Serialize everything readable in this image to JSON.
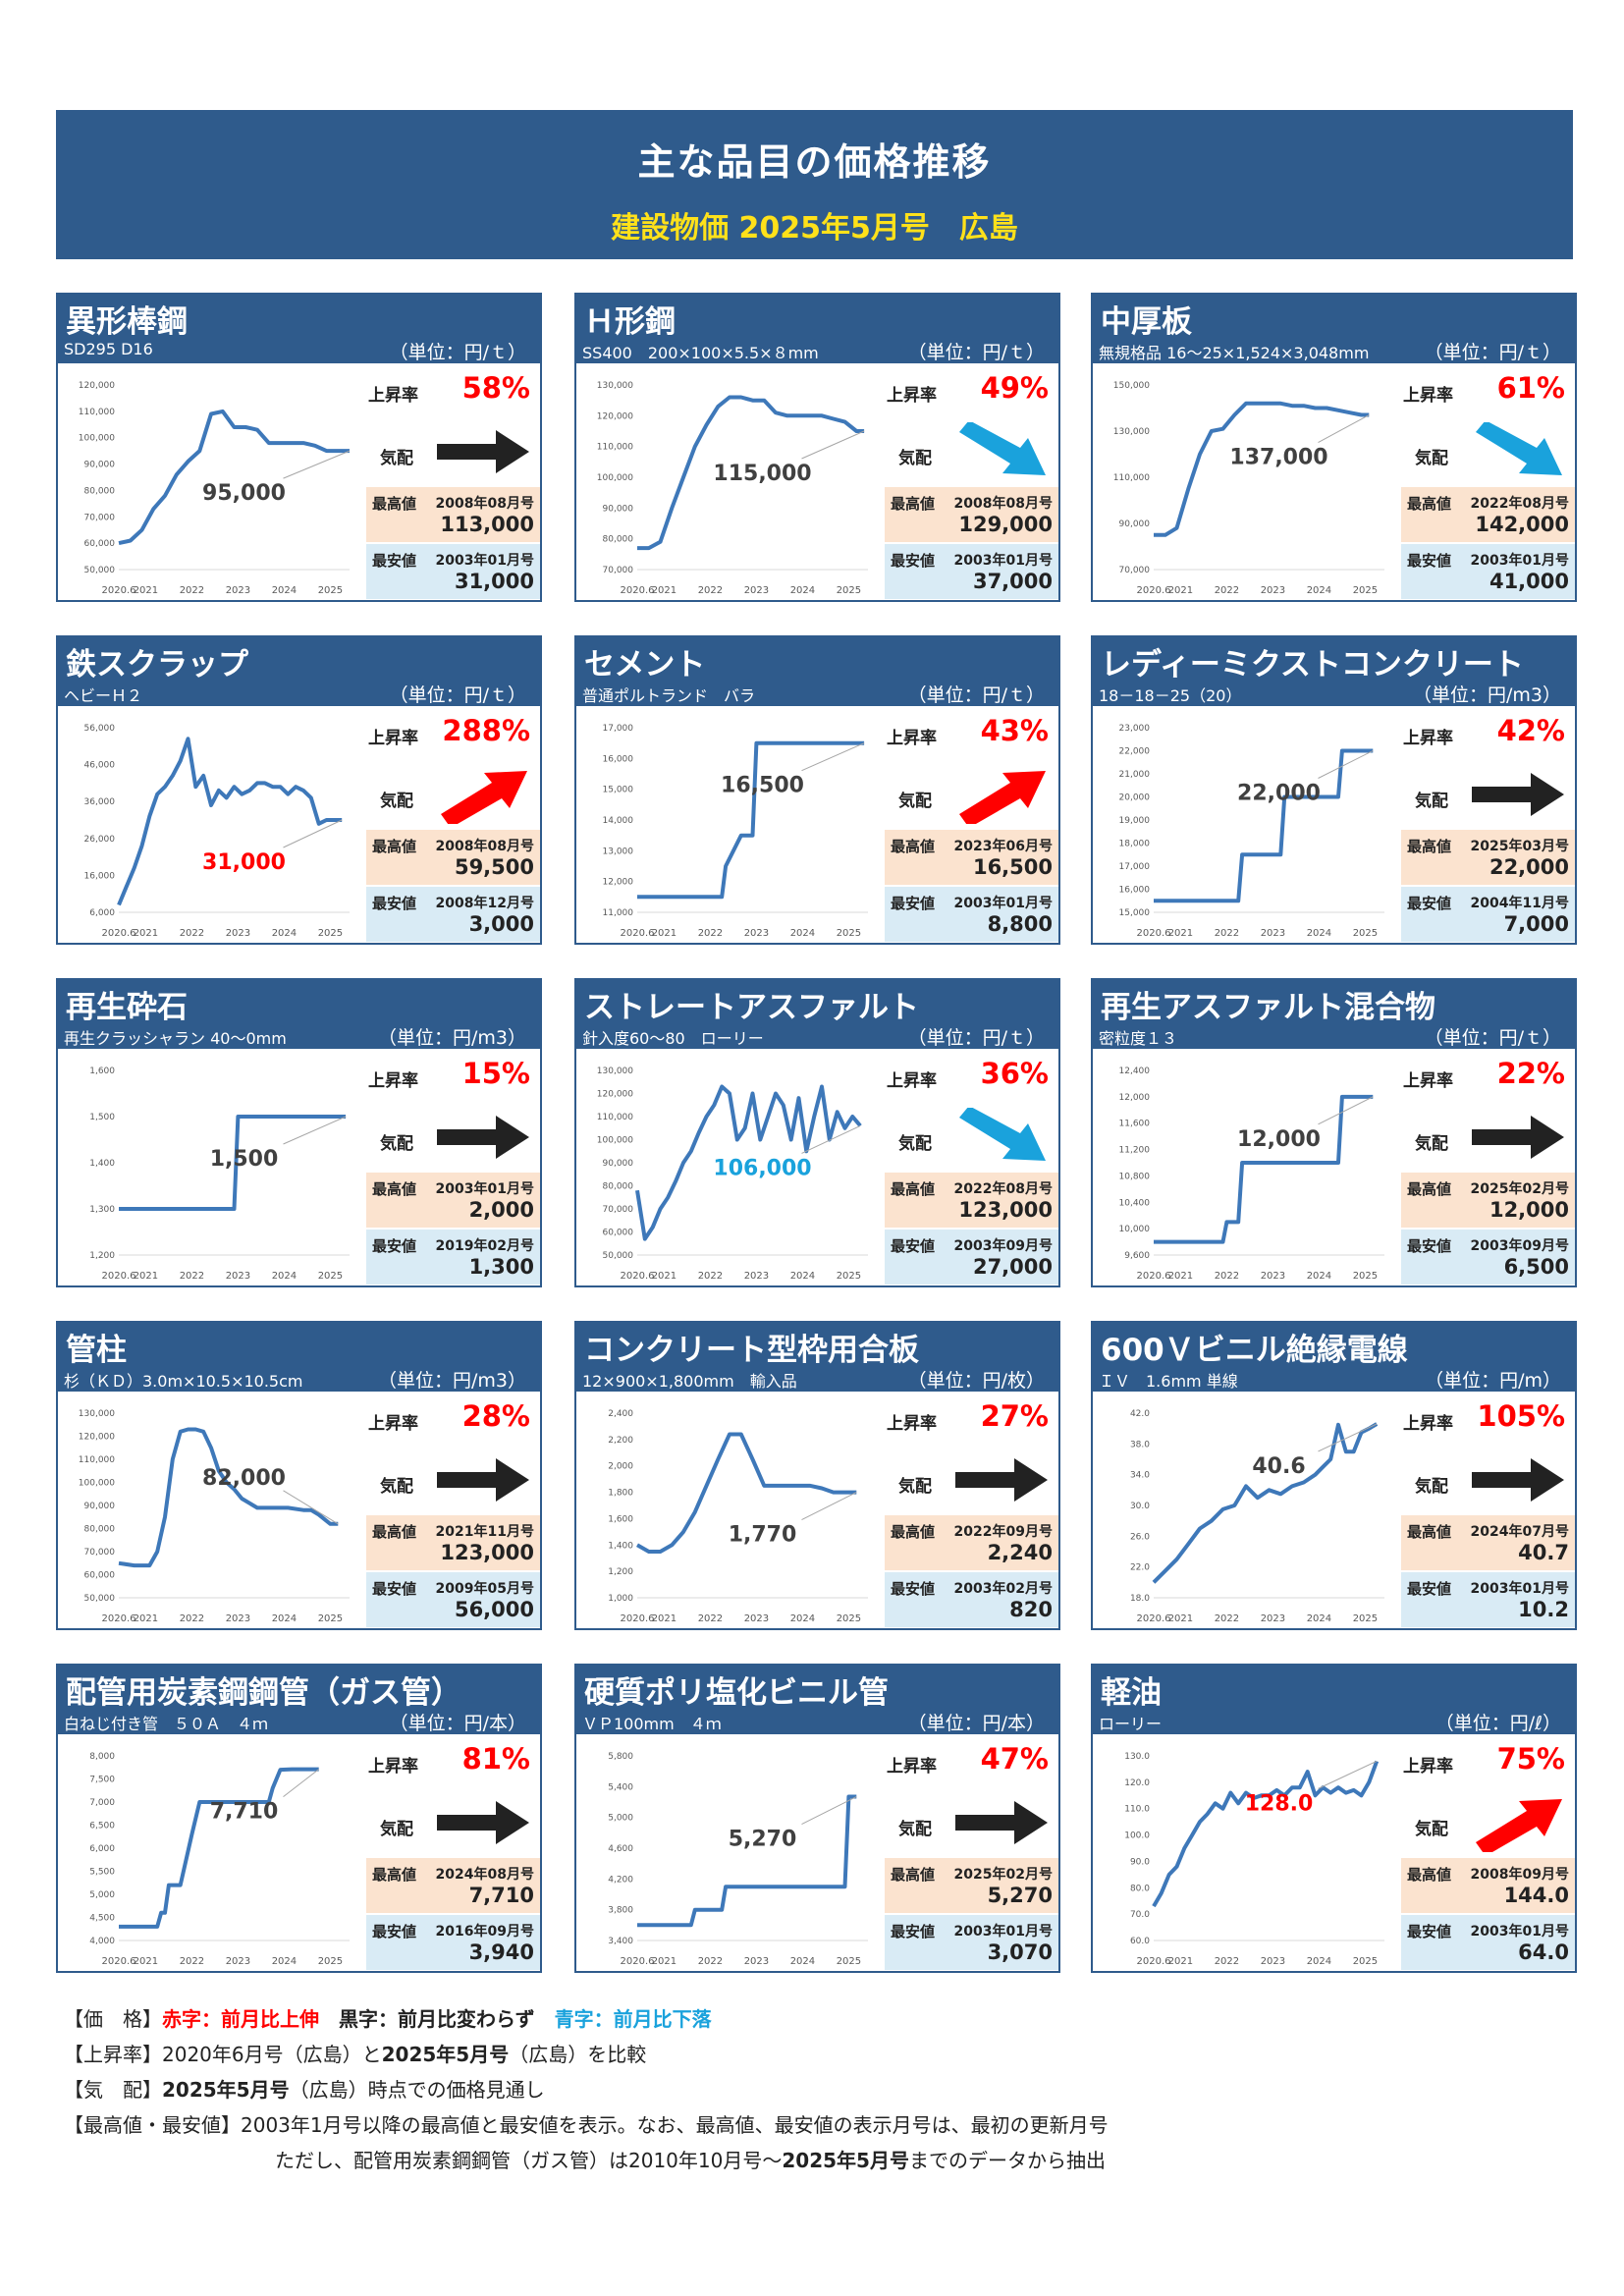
{
  "header": {
    "title": "主な品目の価格推移",
    "subtitle": "建設物価 2025年5月号　広島"
  },
  "common": {
    "rate_label": "上昇率",
    "trend_label": "気配",
    "max_label": "最高値",
    "min_label": "最安値",
    "xticks": [
      "2020.6",
      "2021",
      "2022",
      "2023",
      "2024",
      "2025"
    ]
  },
  "colors": {
    "header_bg": "#2f5b8c",
    "header_sub": "#ffe11a",
    "line": "#3e78b9",
    "up": "#ff0000",
    "flat": "#222222",
    "down": "#1aa2dc",
    "max_bg": "#fbe3cf",
    "min_bg": "#d9ebf5"
  },
  "chart_data": [
    {
      "type": "line",
      "title": "異形棒鋼",
      "spec": "SD295 D16",
      "unit": "（単位：円/ｔ）",
      "yticks": [
        "50,000",
        "60,000",
        "70,000",
        "80,000",
        "90,000",
        "100,000",
        "110,000",
        "120,000"
      ],
      "ylim": [
        50000,
        120000
      ],
      "x": [
        0,
        3,
        6,
        9,
        12,
        15,
        18,
        21,
        24,
        27,
        30,
        33,
        36,
        39,
        42,
        45,
        48,
        51,
        54,
        57,
        60
      ],
      "values": [
        60000,
        61000,
        65000,
        73000,
        78000,
        86000,
        91000,
        95000,
        109000,
        110000,
        104000,
        104000,
        103000,
        98000,
        98000,
        98000,
        98000,
        97000,
        95000,
        95000,
        95000
      ],
      "current": "95,000",
      "current_color": "blk",
      "rate": "58%",
      "rate_color": "red",
      "trend": "flat",
      "max_date": "2008年08月号",
      "max": "113,000",
      "min_date": "2003年01月号",
      "min": "31,000"
    },
    {
      "type": "line",
      "title": "Ｈ形鋼",
      "spec": "SS400　200×100×5.5×８mm",
      "unit": "（単位：円/ｔ）",
      "yticks": [
        "70,000",
        "80,000",
        "90,000",
        "100,000",
        "110,000",
        "120,000",
        "130,000"
      ],
      "ylim": [
        70000,
        130000
      ],
      "x": [
        0,
        3,
        6,
        9,
        12,
        15,
        18,
        21,
        24,
        27,
        30,
        33,
        36,
        39,
        42,
        45,
        48,
        51,
        54,
        57,
        59
      ],
      "values": [
        77000,
        77000,
        79000,
        90000,
        100000,
        110000,
        117000,
        123000,
        126000,
        126000,
        125000,
        125000,
        121000,
        120000,
        120000,
        120000,
        120000,
        119000,
        118000,
        115000,
        115000
      ],
      "current": "115,000",
      "current_color": "blk",
      "rate": "49%",
      "rate_color": "red",
      "trend": "down",
      "max_date": "2008年08月号",
      "max": "129,000",
      "min_date": "2003年01月号",
      "min": "37,000"
    },
    {
      "type": "line",
      "title": "中厚板",
      "spec": "無規格品 16〜25×1,524×3,048mm",
      "unit": "（単位：円/ｔ）",
      "yticks": [
        "70,000",
        "90,000",
        "110,000",
        "130,000",
        "150,000"
      ],
      "ylim": [
        70000,
        150000
      ],
      "x": [
        0,
        3,
        6,
        9,
        12,
        15,
        18,
        21,
        24,
        27,
        30,
        33,
        36,
        39,
        42,
        45,
        48,
        51,
        54,
        56
      ],
      "values": [
        85000,
        85000,
        88000,
        105000,
        120000,
        130000,
        131000,
        137000,
        142000,
        142000,
        142000,
        142000,
        141000,
        141000,
        140000,
        140000,
        139000,
        138000,
        137000,
        137000
      ],
      "current": "137,000",
      "current_color": "blk",
      "rate": "61%",
      "rate_color": "red",
      "trend": "down",
      "max_date": "2022年08月号",
      "max": "142,000",
      "min_date": "2003年01月号",
      "min": "41,000"
    },
    {
      "type": "line",
      "title": "鉄スクラップ",
      "spec": "ヘビーＨ２",
      "unit": "（単位：円/ｔ）",
      "yticks": [
        "6,000",
        "16,000",
        "26,000",
        "36,000",
        "46,000",
        "56,000"
      ],
      "ylim": [
        6000,
        56000
      ],
      "x": [
        0,
        2,
        4,
        6,
        8,
        10,
        12,
        14,
        16,
        18,
        20,
        22,
        24,
        26,
        28,
        30,
        32,
        34,
        36,
        38,
        40,
        42,
        44,
        46,
        48,
        50,
        52,
        54,
        56,
        58
      ],
      "values": [
        8000,
        13000,
        18000,
        24000,
        32000,
        38000,
        40000,
        43000,
        47000,
        53000,
        40000,
        43000,
        35000,
        39000,
        37000,
        40000,
        38000,
        39000,
        41000,
        41000,
        40000,
        40000,
        38000,
        40000,
        39000,
        37000,
        30000,
        31000,
        31000,
        31000
      ],
      "current": "31,000",
      "current_color": "red",
      "rate": "288%",
      "rate_color": "red",
      "trend": "up",
      "max_date": "2008年08月号",
      "max": "59,500",
      "min_date": "2008年12月号",
      "min": "3,000"
    },
    {
      "type": "line",
      "title": "セメント",
      "spec": "普通ポルトランド　バラ",
      "unit": "（単位：円/ｔ）",
      "yticks": [
        "11,000",
        "12,000",
        "13,000",
        "14,000",
        "15,000",
        "16,000",
        "17,000"
      ],
      "ylim": [
        11000,
        17000
      ],
      "x": [
        0,
        11,
        22,
        23,
        27,
        30,
        31,
        36,
        48,
        59
      ],
      "values": [
        11500,
        11500,
        11500,
        12500,
        13500,
        13500,
        16500,
        16500,
        16500,
        16500
      ],
      "current": "16,500",
      "current_color": "blk",
      "rate": "43%",
      "rate_color": "red",
      "trend": "up",
      "max_date": "2023年06月号",
      "max": "16,500",
      "min_date": "2003年01月号",
      "min": "8,800"
    },
    {
      "type": "line",
      "title": "レディーミクストコンクリート",
      "spec": "18－18－25（20）",
      "unit": "（単位：円/m3）",
      "yticks": [
        "15,000",
        "16,000",
        "17,000",
        "18,000",
        "19,000",
        "20,000",
        "21,000",
        "22,000",
        "23,000"
      ],
      "ylim": [
        15000,
        23000
      ],
      "x": [
        0,
        10,
        22,
        23,
        33,
        34,
        48,
        49,
        57
      ],
      "values": [
        15500,
        15500,
        15500,
        17500,
        17500,
        20000,
        20000,
        22000,
        22000
      ],
      "current": "22,000",
      "current_color": "blk",
      "rate": "42%",
      "rate_color": "red",
      "trend": "flat",
      "max_date": "2025年03月号",
      "max": "22,000",
      "min_date": "2004年11月号",
      "min": "7,000"
    },
    {
      "type": "line",
      "title": "再生砕石",
      "spec": "再生クラッシャラン 40～0mm",
      "unit": "（単位：円/m3）",
      "yticks": [
        "1,200",
        "1,300",
        "1,400",
        "1,500",
        "1,600"
      ],
      "ylim": [
        1200,
        1600
      ],
      "x": [
        0,
        15,
        30,
        31,
        45,
        59
      ],
      "values": [
        1300,
        1300,
        1300,
        1500,
        1500,
        1500
      ],
      "current": "1,500",
      "current_color": "blk",
      "rate": "15%",
      "rate_color": "red",
      "trend": "flat",
      "max_date": "2003年01月号",
      "max": "2,000",
      "min_date": "2019年02月号",
      "min": "1,300"
    },
    {
      "type": "line",
      "title": "ストレートアスファルト",
      "spec": "針入度60〜80　ローリー",
      "unit": "（単位：円/ｔ）",
      "yticks": [
        "50,000",
        "60,000",
        "70,000",
        "80,000",
        "90,000",
        "100,000",
        "110,000",
        "120,000",
        "130,000"
      ],
      "ylim": [
        50000,
        130000
      ],
      "x": [
        0,
        2,
        4,
        6,
        8,
        10,
        12,
        14,
        16,
        18,
        20,
        22,
        24,
        26,
        28,
        30,
        32,
        34,
        36,
        38,
        40,
        42,
        44,
        46,
        48,
        50,
        52,
        54,
        56,
        58
      ],
      "values": [
        78000,
        57000,
        62000,
        70000,
        75000,
        82000,
        90000,
        95000,
        103000,
        110000,
        115000,
        123000,
        120000,
        100000,
        105000,
        120000,
        100000,
        110000,
        120000,
        115000,
        100000,
        118000,
        95000,
        110000,
        123000,
        100000,
        112000,
        105000,
        110000,
        106000
      ],
      "current": "106,000",
      "current_color": "blu",
      "rate": "36%",
      "rate_color": "red",
      "trend": "down",
      "max_date": "2022年08月号",
      "max": "123,000",
      "min_date": "2003年09月号",
      "min": "27,000"
    },
    {
      "type": "line",
      "title": "再生アスファルト混合物",
      "spec": "密粒度１３",
      "unit": "（単位：円/ｔ）",
      "yticks": [
        "9,600",
        "10,000",
        "10,400",
        "10,800",
        "11,200",
        "11,600",
        "12,000",
        "12,400"
      ],
      "ylim": [
        9600,
        12400
      ],
      "x": [
        0,
        10,
        18,
        19,
        22,
        23,
        30,
        48,
        49,
        57
      ],
      "values": [
        9800,
        9800,
        9800,
        10100,
        10100,
        11000,
        11000,
        11000,
        12000,
        12000
      ],
      "current": "12,000",
      "current_color": "blk",
      "rate": "22%",
      "rate_color": "red",
      "trend": "flat",
      "max_date": "2025年02月号",
      "max": "12,000",
      "min_date": "2003年09月号",
      "min": "6,500"
    },
    {
      "type": "line",
      "title": "管柱",
      "spec": "杉（ＫＤ）3.0m×10.5×10.5cm",
      "unit": "（単位：円/m3）",
      "yticks": [
        "50,000",
        "60,000",
        "70,000",
        "80,000",
        "90,000",
        "100,000",
        "110,000",
        "120,000",
        "130,000"
      ],
      "ylim": [
        50000,
        130000
      ],
      "x": [
        0,
        4,
        8,
        10,
        12,
        14,
        16,
        18,
        20,
        22,
        24,
        26,
        28,
        30,
        32,
        36,
        40,
        44,
        48,
        50,
        52,
        55,
        57
      ],
      "values": [
        65000,
        64000,
        64000,
        70000,
        85000,
        110000,
        122000,
        123000,
        123000,
        122000,
        115000,
        105000,
        100000,
        97000,
        93000,
        89000,
        89000,
        89000,
        88000,
        88000,
        86000,
        82000,
        82000
      ],
      "current": "82,000",
      "current_color": "blk",
      "rate": "28%",
      "rate_color": "red",
      "trend": "flat",
      "max_date": "2021年11月号",
      "max": "123,000",
      "min_date": "2009年05月号",
      "min": "56,000"
    },
    {
      "type": "line",
      "title": "コンクリート型枠用合板",
      "spec": "12×900×1,800mm　輸入品",
      "unit": "（単位：円/枚）",
      "yticks": [
        "1,000",
        "1,200",
        "1,400",
        "1,600",
        "1,800",
        "2,000",
        "2,200",
        "2,400"
      ],
      "ylim": [
        1000,
        2400
      ],
      "x": [
        0,
        3,
        6,
        9,
        12,
        15,
        18,
        21,
        24,
        27,
        30,
        33,
        36,
        39,
        42,
        45,
        48,
        51,
        54,
        57
      ],
      "values": [
        1400,
        1350,
        1350,
        1400,
        1500,
        1650,
        1850,
        2050,
        2240,
        2240,
        2050,
        1850,
        1850,
        1850,
        1850,
        1850,
        1830,
        1800,
        1800,
        1800
      ],
      "current": "1,770",
      "current_color": "blk",
      "rate": "27%",
      "rate_color": "red",
      "trend": "flat",
      "max_date": "2022年09月号",
      "max": "2,240",
      "min_date": "2003年02月号",
      "min": "820"
    },
    {
      "type": "line",
      "title": "600Ｖビニル絶縁電線",
      "spec": "ＩＶ　1.6mm 単線",
      "unit": "（単位：円/m）",
      "yticks": [
        "18.0",
        "22.0",
        "26.0",
        "30.0",
        "34.0",
        "38.0",
        "42.0"
      ],
      "ylim": [
        18,
        42
      ],
      "x": [
        0,
        3,
        6,
        9,
        12,
        15,
        18,
        21,
        24,
        27,
        30,
        33,
        36,
        39,
        42,
        44,
        46,
        48,
        50,
        52,
        54,
        56,
        58
      ],
      "values": [
        20,
        21.5,
        23,
        25,
        27,
        28,
        29.5,
        30,
        32.5,
        31,
        32,
        31.5,
        32.5,
        33,
        34,
        35,
        36,
        40.5,
        37,
        37,
        39.5,
        40,
        40.6
      ],
      "current": "40.6",
      "current_color": "blk",
      "rate": "105%",
      "rate_color": "red",
      "trend": "flat",
      "max_date": "2024年07月号",
      "max": "40.7",
      "min_date": "2003年01月号",
      "min": "10.2"
    },
    {
      "type": "line",
      "title": "配管用炭素鋼鋼管（ガス管）",
      "spec": "白ねじ付き管　５０Ａ　４ｍ",
      "unit": "（単位：円/本）",
      "yticks": [
        "4,000",
        "4,500",
        "5,000",
        "5,500",
        "6,000",
        "6,500",
        "7,000",
        "7,500",
        "8,000"
      ],
      "ylim": [
        4000,
        8000
      ],
      "x": [
        0,
        6,
        10,
        11,
        12,
        13,
        15,
        16,
        19,
        21,
        30,
        39,
        40,
        42,
        45,
        52
      ],
      "values": [
        4300,
        4300,
        4300,
        4600,
        4600,
        5200,
        5200,
        5200,
        6300,
        7000,
        7000,
        7000,
        7300,
        7700,
        7710,
        7710
      ],
      "current": "7,710",
      "current_color": "blk",
      "rate": "81%",
      "rate_color": "red",
      "trend": "flat",
      "max_date": "2024年08月号",
      "max": "7,710",
      "min_date": "2016年09月号",
      "min": "3,940"
    },
    {
      "type": "line",
      "title": "硬質ポリ塩化ビニル管",
      "spec": "ＶＰ100mm　４ｍ",
      "unit": "（単位：円/本）",
      "yticks": [
        "3,400",
        "3,800",
        "4,200",
        "4,600",
        "5,000",
        "5,400",
        "5,800"
      ],
      "ylim": [
        3400,
        5800
      ],
      "x": [
        0,
        8,
        14,
        15,
        16,
        22,
        23,
        36,
        44,
        54,
        55,
        57
      ],
      "values": [
        3600,
        3600,
        3600,
        3800,
        3800,
        3800,
        4100,
        4100,
        4100,
        4100,
        5270,
        5270
      ],
      "current": "5,270",
      "current_color": "blk",
      "rate": "47%",
      "rate_color": "red",
      "trend": "flat",
      "max_date": "2025年02月号",
      "max": "5,270",
      "min_date": "2003年01月号",
      "min": "3,070"
    },
    {
      "type": "line",
      "title": "軽油",
      "spec": "ローリー",
      "unit": "（単位：円/ℓ）",
      "yticks": [
        "60.0",
        "70.0",
        "80.0",
        "90.0",
        "100.0",
        "110.0",
        "120.0",
        "130.0"
      ],
      "ylim": [
        60,
        130
      ],
      "x": [
        0,
        2,
        4,
        6,
        8,
        10,
        12,
        14,
        16,
        18,
        20,
        22,
        24,
        26,
        28,
        30,
        32,
        34,
        36,
        38,
        40,
        42,
        44,
        46,
        48,
        50,
        52,
        54,
        56,
        58
      ],
      "values": [
        73,
        78,
        85,
        88,
        95,
        100,
        105,
        108,
        112,
        110,
        116,
        112,
        116,
        114,
        115,
        115,
        117,
        115,
        118,
        118,
        124,
        115,
        118,
        116,
        118,
        116,
        117,
        115,
        120,
        128
      ],
      "current": "128.0",
      "current_color": "red",
      "rate": "75%",
      "rate_color": "red",
      "trend": "up",
      "max_date": "2008年09月号",
      "max": "144.0",
      "min_date": "2003年01月号",
      "min": "64.0"
    }
  ],
  "legend": {
    "l1_a": "【価　格】",
    "l1_red": "赤字：前月比上伸",
    "l1_blk": "黒字：前月比変わらず",
    "l1_blu": "青字：前月比下落",
    "l2_a": "【上昇率】2020年6月号（広島）と",
    "l2_b": "2025年5月号",
    "l2_c": "（広島）を比較",
    "l3_a": "【気　配】",
    "l3_b": "2025年5月号",
    "l3_c": "（広島）時点での価格見通し",
    "l4": "【最高値・最安値】2003年1月号以降の最高値と最安値を表示。なお、最高値、最安値の表示月号は、最初の更新月号",
    "l5_a": "ただし、配管用炭素鋼鋼管（ガス管）は2010年10月号～",
    "l5_b": "2025年5月号",
    "l5_c": "までのデータから抽出"
  }
}
